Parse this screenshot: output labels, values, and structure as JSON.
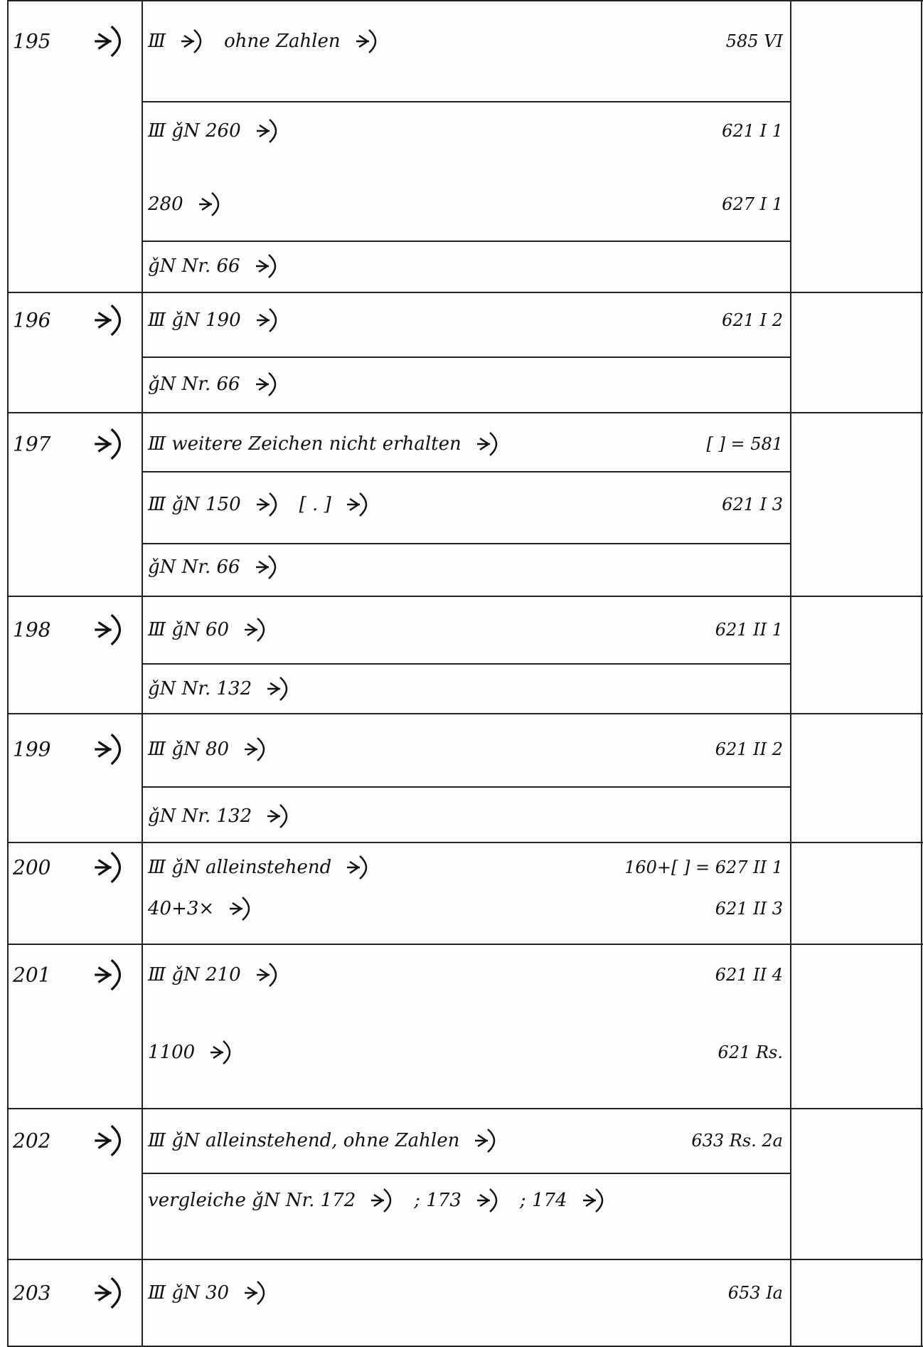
{
  "rows": [
    {
      "number": "195",
      "cells": [
        {
          "lines": [
            {
              "parts": [
                "Ⅲ",
                "ohne Zahlen"
              ],
              "ref": "585 VI"
            }
          ]
        },
        {
          "lines": [
            {
              "parts": [
                "Ⅲ ǧN 260"
              ],
              "ref": "621 I 1"
            },
            {
              "parts": [
                "280"
              ],
              "ref": "627 I 1"
            }
          ]
        },
        {
          "lines": [
            {
              "parts": [
                "ǧN Nr. 66"
              ]
            }
          ]
        }
      ]
    },
    {
      "number": "196",
      "cells": [
        {
          "lines": [
            {
              "parts": [
                "Ⅲ ǧN 190"
              ],
              "ref": "621 I 2"
            }
          ]
        },
        {
          "lines": [
            {
              "parts": [
                "ǧN Nr. 66"
              ]
            }
          ]
        }
      ]
    },
    {
      "number": "197",
      "cells": [
        {
          "lines": [
            {
              "parts": [
                "Ⅲ weitere Zeichen nicht erhalten"
              ],
              "ref": "[ ] = 581"
            }
          ]
        },
        {
          "lines": [
            {
              "parts": [
                "Ⅲ ǧN 150",
                "[ . ]"
              ],
              "ref": "621 I 3"
            }
          ]
        },
        {
          "lines": [
            {
              "parts": [
                "ǧN Nr. 66"
              ]
            }
          ]
        }
      ]
    },
    {
      "number": "198",
      "cells": [
        {
          "lines": [
            {
              "parts": [
                "Ⅲ ǧN 60"
              ],
              "ref": "621 II 1"
            }
          ]
        },
        {
          "lines": [
            {
              "parts": [
                "ǧN Nr. 132"
              ]
            }
          ]
        }
      ]
    },
    {
      "number": "199",
      "cells": [
        {
          "lines": [
            {
              "parts": [
                "Ⅲ ǧN 80"
              ],
              "ref": "621 II 2"
            }
          ]
        },
        {
          "lines": [
            {
              "parts": [
                "ǧN Nr. 132"
              ]
            }
          ]
        }
      ]
    },
    {
      "number": "200",
      "cells": [
        {
          "lines": [
            {
              "parts": [
                "Ⅲ ǧN alleinstehend"
              ],
              "ref": "160+[ ] = 627 II 1"
            },
            {
              "parts": [
                "40+3×"
              ],
              "ref": "621 II 3"
            }
          ]
        }
      ]
    },
    {
      "number": "201",
      "cells": [
        {
          "lines": [
            {
              "parts": [
                "Ⅲ ǧN 210"
              ],
              "ref": "621 II 4"
            },
            {
              "parts": [
                "1100"
              ],
              "ref": "621 Rs."
            }
          ]
        }
      ]
    },
    {
      "number": "202",
      "cells": [
        {
          "lines": [
            {
              "parts": [
                "Ⅲ ǧN alleinstehend, ohne Zahlen"
              ],
              "ref": "633 Rs. 2a"
            }
          ]
        },
        {
          "lines": [
            {
              "parts": [
                "vergleiche ǧN Nr. 172",
                "; 173",
                "; 174"
              ]
            }
          ]
        }
      ]
    },
    {
      "number": "203",
      "cells": [
        {
          "lines": [
            {
              "parts": [
                "Ⅲ ǧN 30"
              ],
              "ref": "653 Ia"
            }
          ]
        }
      ]
    }
  ]
}
